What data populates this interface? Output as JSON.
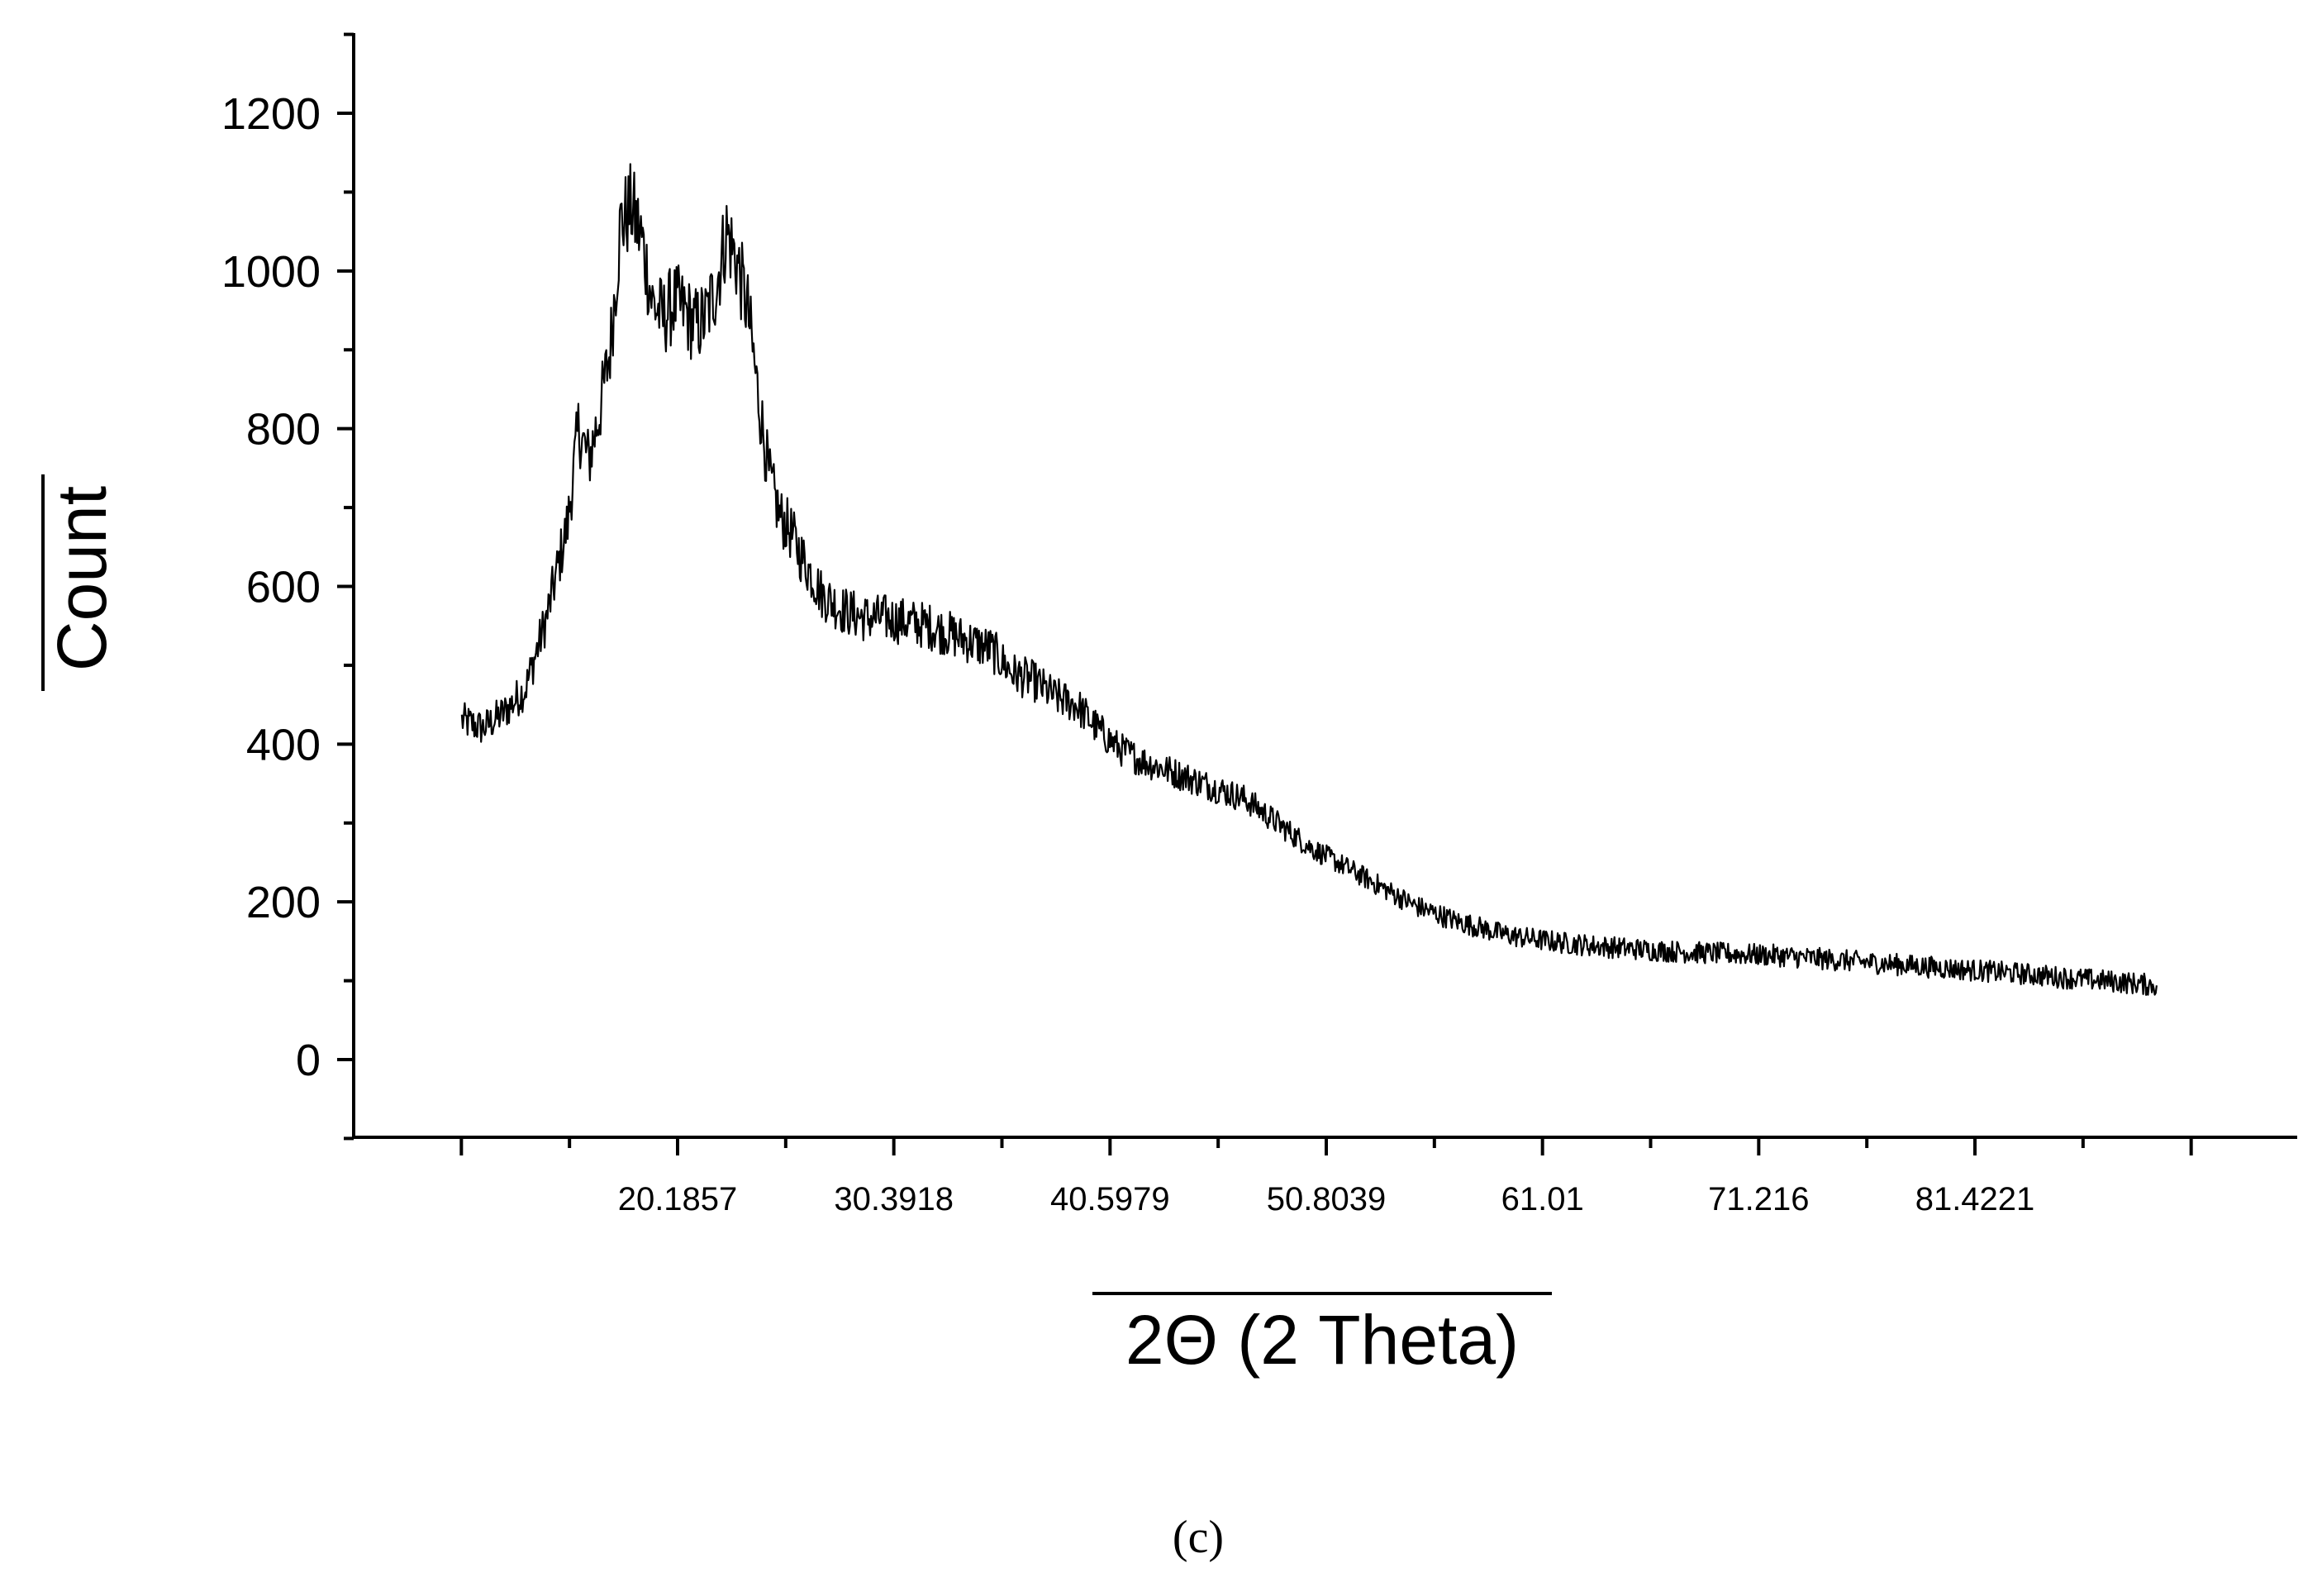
{
  "chart_data": {
    "type": "line",
    "title": "",
    "xlabel": "2Θ (2 Theta)",
    "ylabel": "Count",
    "panel_label": "(c)",
    "xlim": [
      5.0,
      95.0
    ],
    "ylim": [
      -100,
      1300
    ],
    "x_ticks": [
      20.1857,
      30.3918,
      40.5979,
      50.8039,
      61.01,
      71.216,
      81.4221
    ],
    "x_tick_labels": [
      "20.1857",
      "30.3918",
      "40.5979",
      "50.8039",
      "61.01",
      "71.216",
      "81.4221"
    ],
    "y_ticks": [
      0,
      200,
      400,
      600,
      800,
      1000,
      1200
    ],
    "y_tick_labels": [
      "0",
      "200",
      "400",
      "600",
      "800",
      "1000",
      "1200"
    ],
    "grid": false,
    "legend": "none",
    "line_color": "#000000",
    "series": [
      {
        "x": [
          10.0,
          11.0,
          12.0,
          13.0,
          14.0,
          15.0,
          15.5,
          16.0,
          16.5,
          17.0,
          17.5,
          18.0,
          18.5,
          19.0,
          19.5,
          20.0,
          20.5,
          21.0,
          21.5,
          22.0,
          22.5,
          23.0,
          23.5,
          24.0,
          24.5,
          25.0,
          25.5,
          26.0,
          27.0,
          28.0,
          29.0,
          30.0,
          31.0,
          32.0,
          33.0,
          34.0,
          35.0,
          36.0,
          37.0,
          38.0,
          39.0,
          40.0,
          41.0,
          42.0,
          43.0,
          44.0,
          45.0,
          46.0,
          47.0,
          48.0,
          49.0,
          50.0,
          51.0,
          52.0,
          53.0,
          54.0,
          55.0,
          56.0,
          57.0,
          58.0,
          59.0,
          60.0,
          62.0,
          64.0,
          66.0,
          68.0,
          70.0,
          72.0,
          74.0,
          76.0,
          78.0,
          80.0,
          82.0,
          84.0,
          86.0,
          88.0,
          90.0
        ],
        "y": [
          430,
          420,
          440,
          470,
          560,
          680,
          800,
          760,
          820,
          900,
          1060,
          1080,
          1040,
          960,
          940,
          960,
          950,
          930,
          940,
          980,
          1050,
          1010,
          950,
          840,
          740,
          690,
          670,
          640,
          590,
          570,
          560,
          560,
          555,
          550,
          540,
          530,
          520,
          490,
          480,
          460,
          450,
          420,
          395,
          380,
          370,
          360,
          350,
          340,
          330,
          310,
          290,
          270,
          255,
          240,
          225,
          210,
          195,
          185,
          175,
          168,
          160,
          155,
          148,
          143,
          139,
          136,
          134,
          132,
          128,
          124,
          120,
          116,
          112,
          108,
          103,
          99,
          94
        ]
      }
    ]
  }
}
